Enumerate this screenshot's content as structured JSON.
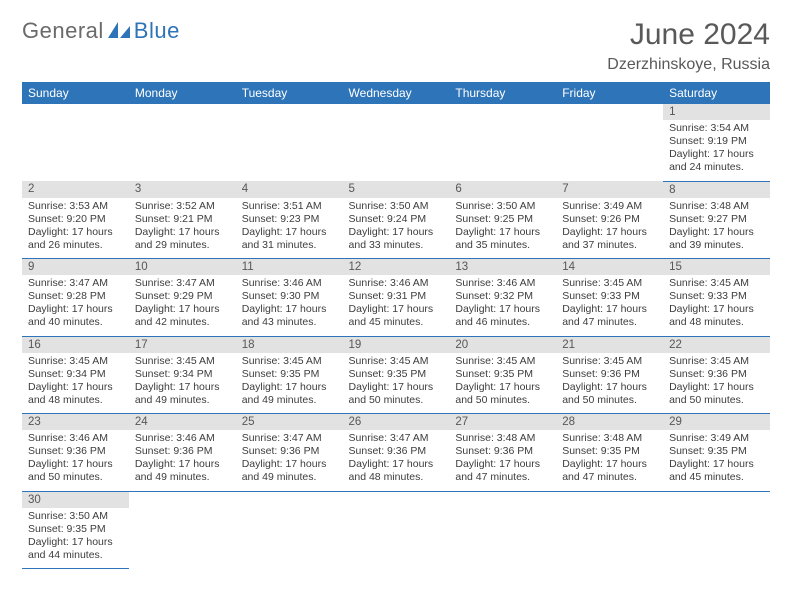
{
  "branding": {
    "logo_a": "General",
    "logo_b": "Blue",
    "logo_color_a": "#6a6a6a",
    "logo_color_b": "#2d74b8"
  },
  "calendar": {
    "title": "June 2024",
    "location": "Dzerzhinskoye, Russia",
    "header_bg": "#2d74b8",
    "header_fg": "#ffffff",
    "daynum_bg": "#e2e2e2",
    "rule_color": "#2d74b8",
    "text_color": "#3d3d3d",
    "title_color": "#595959",
    "font_size_title": 30,
    "font_size_location": 16,
    "font_size_header": 12,
    "font_size_daynum": 11.5,
    "font_size_detail": 10.5,
    "weekdays": [
      "Sunday",
      "Monday",
      "Tuesday",
      "Wednesday",
      "Thursday",
      "Friday",
      "Saturday"
    ],
    "weeks": [
      [
        null,
        null,
        null,
        null,
        null,
        null,
        {
          "n": "1",
          "sunrise": "3:54 AM",
          "sunset": "9:19 PM",
          "dh": "17",
          "dm": "24"
        }
      ],
      [
        {
          "n": "2",
          "sunrise": "3:53 AM",
          "sunset": "9:20 PM",
          "dh": "17",
          "dm": "26"
        },
        {
          "n": "3",
          "sunrise": "3:52 AM",
          "sunset": "9:21 PM",
          "dh": "17",
          "dm": "29"
        },
        {
          "n": "4",
          "sunrise": "3:51 AM",
          "sunset": "9:23 PM",
          "dh": "17",
          "dm": "31"
        },
        {
          "n": "5",
          "sunrise": "3:50 AM",
          "sunset": "9:24 PM",
          "dh": "17",
          "dm": "33"
        },
        {
          "n": "6",
          "sunrise": "3:50 AM",
          "sunset": "9:25 PM",
          "dh": "17",
          "dm": "35"
        },
        {
          "n": "7",
          "sunrise": "3:49 AM",
          "sunset": "9:26 PM",
          "dh": "17",
          "dm": "37"
        },
        {
          "n": "8",
          "sunrise": "3:48 AM",
          "sunset": "9:27 PM",
          "dh": "17",
          "dm": "39"
        }
      ],
      [
        {
          "n": "9",
          "sunrise": "3:47 AM",
          "sunset": "9:28 PM",
          "dh": "17",
          "dm": "40"
        },
        {
          "n": "10",
          "sunrise": "3:47 AM",
          "sunset": "9:29 PM",
          "dh": "17",
          "dm": "42"
        },
        {
          "n": "11",
          "sunrise": "3:46 AM",
          "sunset": "9:30 PM",
          "dh": "17",
          "dm": "43"
        },
        {
          "n": "12",
          "sunrise": "3:46 AM",
          "sunset": "9:31 PM",
          "dh": "17",
          "dm": "45"
        },
        {
          "n": "13",
          "sunrise": "3:46 AM",
          "sunset": "9:32 PM",
          "dh": "17",
          "dm": "46"
        },
        {
          "n": "14",
          "sunrise": "3:45 AM",
          "sunset": "9:33 PM",
          "dh": "17",
          "dm": "47"
        },
        {
          "n": "15",
          "sunrise": "3:45 AM",
          "sunset": "9:33 PM",
          "dh": "17",
          "dm": "48"
        }
      ],
      [
        {
          "n": "16",
          "sunrise": "3:45 AM",
          "sunset": "9:34 PM",
          "dh": "17",
          "dm": "48"
        },
        {
          "n": "17",
          "sunrise": "3:45 AM",
          "sunset": "9:34 PM",
          "dh": "17",
          "dm": "49"
        },
        {
          "n": "18",
          "sunrise": "3:45 AM",
          "sunset": "9:35 PM",
          "dh": "17",
          "dm": "49"
        },
        {
          "n": "19",
          "sunrise": "3:45 AM",
          "sunset": "9:35 PM",
          "dh": "17",
          "dm": "50"
        },
        {
          "n": "20",
          "sunrise": "3:45 AM",
          "sunset": "9:35 PM",
          "dh": "17",
          "dm": "50"
        },
        {
          "n": "21",
          "sunrise": "3:45 AM",
          "sunset": "9:36 PM",
          "dh": "17",
          "dm": "50"
        },
        {
          "n": "22",
          "sunrise": "3:45 AM",
          "sunset": "9:36 PM",
          "dh": "17",
          "dm": "50"
        }
      ],
      [
        {
          "n": "23",
          "sunrise": "3:46 AM",
          "sunset": "9:36 PM",
          "dh": "17",
          "dm": "50"
        },
        {
          "n": "24",
          "sunrise": "3:46 AM",
          "sunset": "9:36 PM",
          "dh": "17",
          "dm": "49"
        },
        {
          "n": "25",
          "sunrise": "3:47 AM",
          "sunset": "9:36 PM",
          "dh": "17",
          "dm": "49"
        },
        {
          "n": "26",
          "sunrise": "3:47 AM",
          "sunset": "9:36 PM",
          "dh": "17",
          "dm": "48"
        },
        {
          "n": "27",
          "sunrise": "3:48 AM",
          "sunset": "9:36 PM",
          "dh": "17",
          "dm": "47"
        },
        {
          "n": "28",
          "sunrise": "3:48 AM",
          "sunset": "9:35 PM",
          "dh": "17",
          "dm": "47"
        },
        {
          "n": "29",
          "sunrise": "3:49 AM",
          "sunset": "9:35 PM",
          "dh": "17",
          "dm": "45"
        }
      ],
      [
        {
          "n": "30",
          "sunrise": "3:50 AM",
          "sunset": "9:35 PM",
          "dh": "17",
          "dm": "44"
        },
        null,
        null,
        null,
        null,
        null,
        null
      ]
    ]
  }
}
